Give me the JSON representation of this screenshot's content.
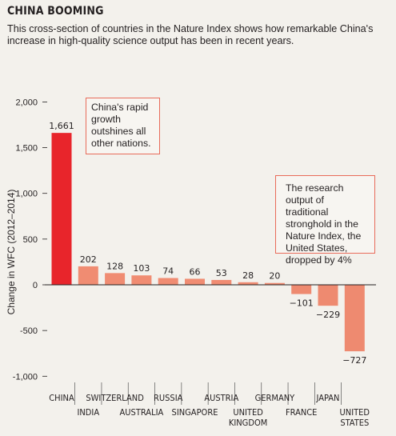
{
  "header": {
    "title": "CHINA BOOMING",
    "subtitle": "This cross-section of countries in the Nature Index shows how remarkable China's increase in high-quality science output has been in recent years."
  },
  "annotations": {
    "china_note": "China's rapid growth outshines all other nations.",
    "us_note": "The research output of traditional stronghold in the Nature Index, the United States, dropped by 4%"
  },
  "colors": {
    "china_bar": "#e8252b",
    "positive_bar": "#f08c72",
    "negative_bar": "#ee8a70",
    "callout_border": "#e86b5a"
  },
  "chart_data": {
    "type": "bar",
    "title": "",
    "xlabel": "",
    "ylabel": "Change in WFC (2012–2014)",
    "ylim": [
      -1000,
      2000
    ],
    "yticks": [
      "2,000",
      "1,500",
      "1,000",
      "500",
      "0",
      "-500",
      "-1,000"
    ],
    "ytick_values": [
      2000,
      1500,
      1000,
      500,
      0,
      -500,
      -1000
    ],
    "grid": false,
    "categories": [
      "CHINA",
      "INDIA",
      "SWITZERLAND",
      "AUSTRALIA",
      "RUSSIA",
      "SINGAPORE",
      "AUSTRIA",
      "UNITED KINGDOM",
      "GERMANY",
      "FRANCE",
      "JAPAN",
      "UNITED STATES"
    ],
    "category_lines": [
      [
        "CHINA"
      ],
      [
        "INDIA"
      ],
      [
        "SWITZERLAND"
      ],
      [
        "AUSTRALIA"
      ],
      [
        "RUSSIA"
      ],
      [
        "SINGAPORE"
      ],
      [
        "AUSTRIA"
      ],
      [
        "UNITED",
        "KINGDOM"
      ],
      [
        "GERMANY"
      ],
      [
        "FRANCE"
      ],
      [
        "JAPAN"
      ],
      [
        "UNITED",
        "STATES"
      ]
    ],
    "values": [
      1661,
      202,
      128,
      103,
      74,
      66,
      53,
      28,
      20,
      -101,
      -229,
      -727
    ],
    "value_labels": [
      "1,661",
      "202",
      "128",
      "103",
      "74",
      "66",
      "53",
      "28",
      "20",
      "−101",
      "−229",
      "−727"
    ]
  }
}
